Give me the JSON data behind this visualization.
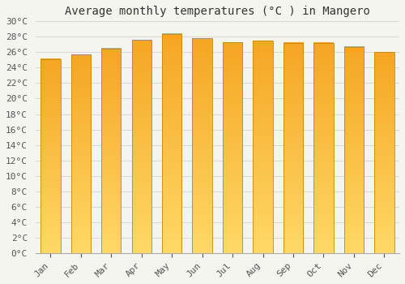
{
  "title": "Average monthly temperatures (°C ) in Mangero",
  "months": [
    "Jan",
    "Feb",
    "Mar",
    "Apr",
    "May",
    "Jun",
    "Jul",
    "Aug",
    "Sep",
    "Oct",
    "Nov",
    "Dec"
  ],
  "values": [
    25.1,
    25.7,
    26.5,
    27.6,
    28.4,
    27.8,
    27.3,
    27.5,
    27.2,
    27.2,
    26.7,
    26.0
  ],
  "bar_color_top": "#F5A623",
  "bar_color_bottom": "#FFD966",
  "bar_edge_color": "#C8860A",
  "ylim": [
    0,
    30
  ],
  "ytick_step": 2,
  "background_color": "#f5f5f0",
  "plot_bg_color": "#f5f5f0",
  "grid_color": "#d8d8d8",
  "title_fontsize": 10,
  "tick_fontsize": 8,
  "font_family": "monospace"
}
